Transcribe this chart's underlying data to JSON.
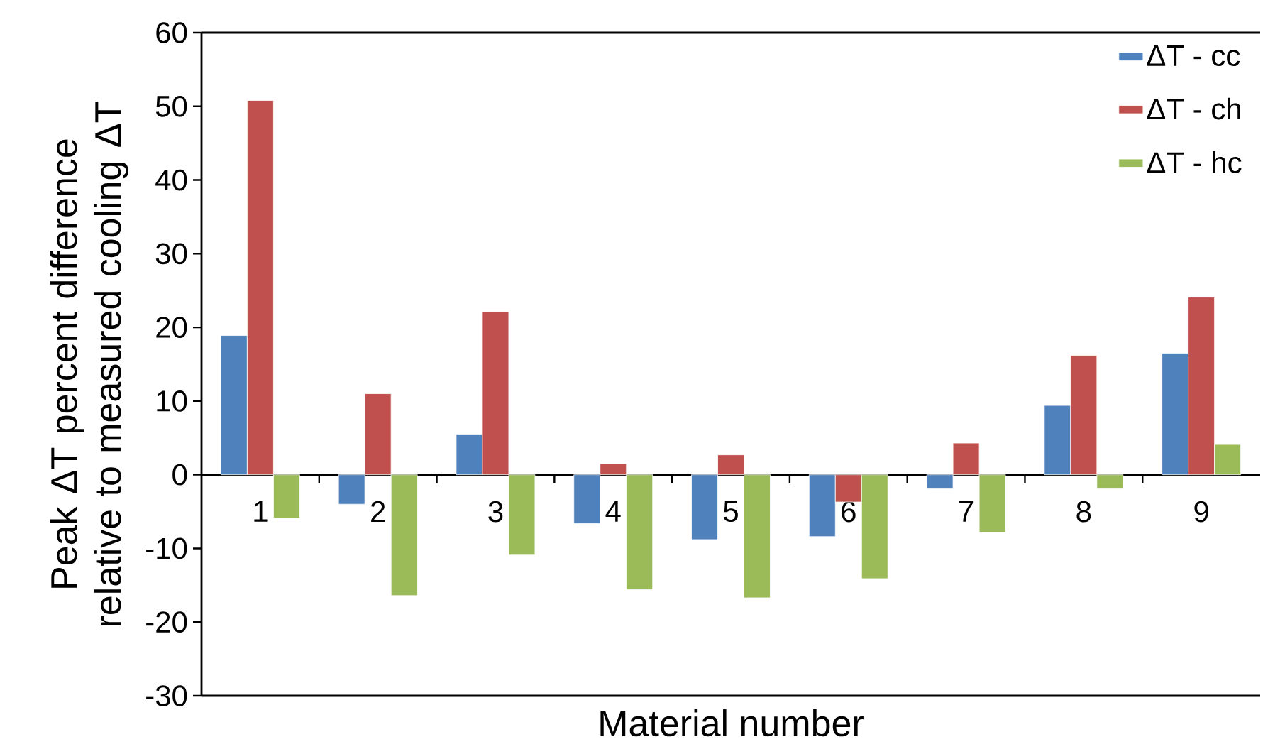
{
  "chart_data": {
    "type": "bar",
    "xlabel": "Material number",
    "ylabel": "Peak ΔT percent difference relative to measured cooling ΔT",
    "categories": [
      "1",
      "2",
      "3",
      "4",
      "5",
      "6",
      "7",
      "8",
      "9"
    ],
    "series": [
      {
        "name": "ΔT - cc",
        "color": "#4f81bd",
        "values": [
          18.9,
          -4.0,
          5.5,
          -6.6,
          -8.8,
          -8.4,
          -1.9,
          9.4,
          16.5
        ]
      },
      {
        "name": "ΔT - ch",
        "color": "#c0504d",
        "values": [
          50.8,
          11.0,
          22.1,
          1.5,
          2.7,
          -3.7,
          4.3,
          16.2,
          24.1
        ]
      },
      {
        "name": "ΔT - hc",
        "color": "#9bbb59",
        "values": [
          -5.9,
          -16.4,
          -10.9,
          -15.6,
          -16.7,
          -14.1,
          -7.8,
          -1.9,
          4.1
        ]
      }
    ],
    "ylim": [
      -30,
      60
    ],
    "yticks": [
      -30,
      -20,
      -10,
      0,
      10,
      20,
      30,
      40,
      50,
      60
    ],
    "legend": "top right",
    "grid": false
  }
}
